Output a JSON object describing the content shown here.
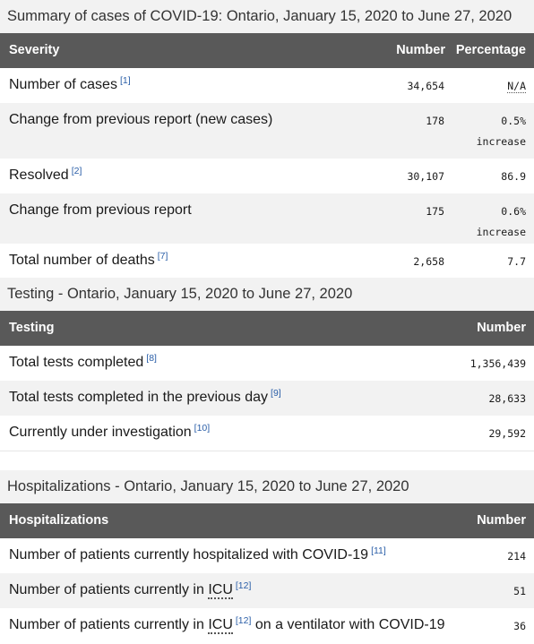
{
  "summary": {
    "caption": "Summary of cases of COVID-19: Ontario, January 15, 2020 to June 27, 2020",
    "headers": {
      "severity": "Severity",
      "number": "Number",
      "percentage": "Percentage"
    },
    "rows": [
      {
        "label": "Number of cases",
        "ref": "[1]",
        "number": "34,654",
        "pct": "N/A",
        "pct2": ""
      },
      {
        "label": "Change from previous report (new cases)",
        "ref": "",
        "number": "178",
        "pct": "0.5%",
        "pct2": "increase"
      },
      {
        "label": "Resolved",
        "ref": "[2]",
        "number": "30,107",
        "pct": "86.9",
        "pct2": ""
      },
      {
        "label": "Change from previous report",
        "ref": "",
        "number": "175",
        "pct": "0.6%",
        "pct2": "increase"
      },
      {
        "label": "Total number of deaths",
        "ref": "[7]",
        "number": "2,658",
        "pct": "7.7",
        "pct2": ""
      }
    ]
  },
  "testing": {
    "caption_bold": "Testing",
    "caption_rest": " - Ontario, January 15, 2020 to June 27, 2020",
    "headers": {
      "testing": "Testing",
      "number": "Number"
    },
    "rows": [
      {
        "label": "Total tests completed",
        "ref": "[8]",
        "number": "1,356,439"
      },
      {
        "label": "Total tests completed in the previous day",
        "ref": "[9]",
        "number": "28,633"
      },
      {
        "label": "Currently under investigation",
        "ref": "[10]",
        "number": "29,592"
      }
    ]
  },
  "hospitalizations": {
    "caption_bold": "Hospitalizations",
    "caption_rest": " - Ontario, January 15, 2020 to June 27, 2020",
    "headers": {
      "hospitalizations": "Hospitalizations",
      "number": "Number"
    },
    "rows": [
      {
        "label": "Number of patients currently hospitalized with COVID-19",
        "ref": "[11]",
        "number": "214"
      },
      {
        "label_pre": "Number of patients currently in ",
        "abbr": "ICU",
        "ref": "[12]",
        "label_post": "",
        "number": "51"
      },
      {
        "label_pre": "Number of patients currently in ",
        "abbr": "ICU",
        "ref": "[12]",
        "label_post": " on a ventilator with COVID-19",
        "number": "36"
      }
    ]
  }
}
